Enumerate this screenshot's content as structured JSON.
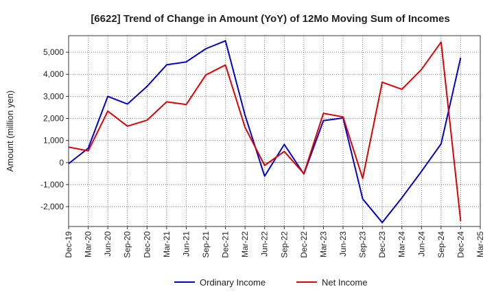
{
  "chart_data": {
    "type": "line",
    "title": "[6622]  Trend of Change in Amount (YoY) of 12Mo Moving Sum of Incomes",
    "xlabel": "",
    "ylabel": "Amount (million yen)",
    "ylim": [
      -2900,
      5750
    ],
    "yticks": [
      -2000,
      -1000,
      0,
      1000,
      2000,
      3000,
      4000,
      5000
    ],
    "ytick_labels": [
      "-2,000",
      "-1,000",
      "0",
      "1,000",
      "2,000",
      "3,000",
      "4,000",
      "5,000"
    ],
    "categories": [
      "Dec-19",
      "Mar-20",
      "Jun-20",
      "Sep-20",
      "Dec-20",
      "Mar-21",
      "Jun-21",
      "Sep-21",
      "Dec-21",
      "Mar-22",
      "Jun-22",
      "Sep-22",
      "Dec-22",
      "Mar-23",
      "Jun-23",
      "Sep-23",
      "Dec-23",
      "Mar-24",
      "Jun-24",
      "Sep-24",
      "Dec-24",
      "Mar-25"
    ],
    "grid": true,
    "legend_position": "bottom-center",
    "series": [
      {
        "name": "Ordinary Income",
        "color": "#0000cc",
        "values": [
          -50,
          650,
          3000,
          2650,
          3450,
          4430,
          4560,
          5160,
          5520,
          2150,
          -620,
          820,
          -520,
          1900,
          2020,
          -1650,
          -2720,
          -1600,
          -400,
          850,
          4750,
          null
        ]
      },
      {
        "name": "Net Income",
        "color": "#dd0000",
        "values": [
          700,
          530,
          2330,
          1650,
          1920,
          2750,
          2630,
          3970,
          4420,
          1600,
          -130,
          500,
          -500,
          2230,
          2070,
          -720,
          3640,
          3320,
          4220,
          5460,
          -2650,
          null
        ]
      }
    ]
  }
}
